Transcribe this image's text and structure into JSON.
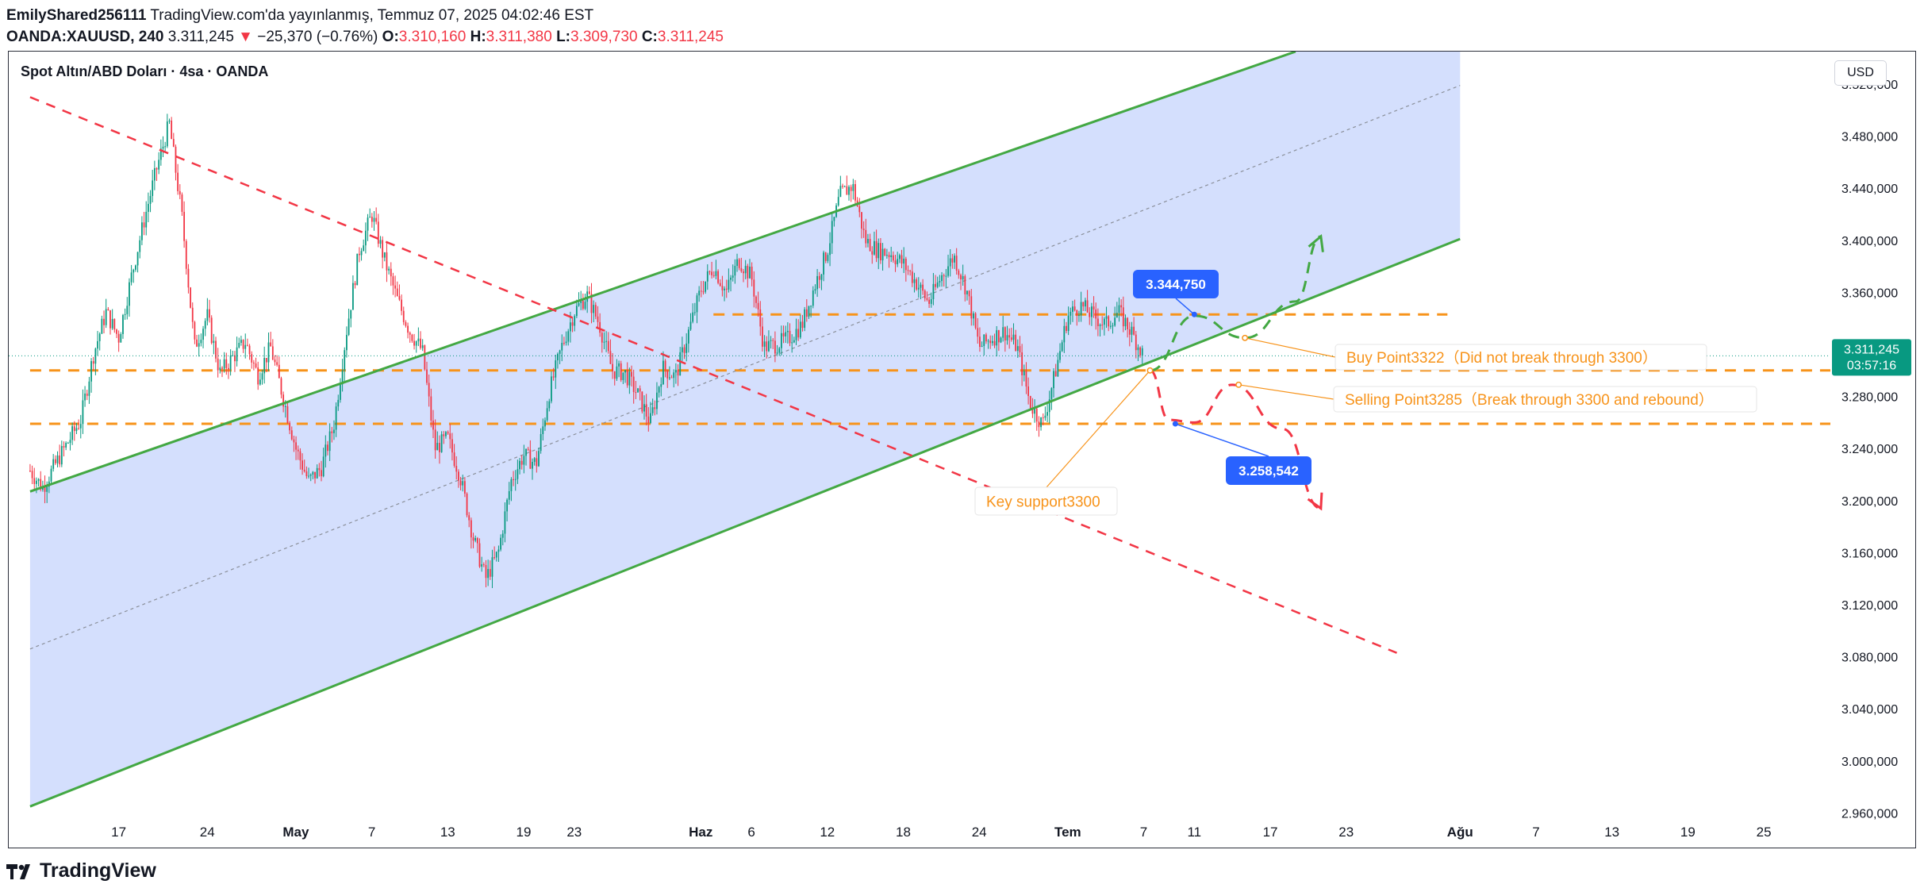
{
  "header": {
    "author": "EmilyShared256111",
    "published": "TradingView.com'da yayınlanmış, Temmuz 07, 2025 04:02:46 EST",
    "symbol": "OANDA:XAUUSD, 240",
    "last": "3.311,245",
    "change_arrow": "▼",
    "change": "−25,370 (−0.76%)",
    "o_label": "O:",
    "o": "3.310,160",
    "h_label": "H:",
    "h": "3.311,380",
    "l_label": "L:",
    "l": "3.309,730",
    "c_label": "C:",
    "c": "3.311,245"
  },
  "chart_title": "Spot Altın/ABD Doları · 4sa · OANDA",
  "currency": "USD",
  "price_badge": {
    "price": "3.311,245",
    "timer": "03:57:16"
  },
  "footer": {
    "brand": "TradingView"
  },
  "colors": {
    "up": "#089981",
    "down": "#f23645",
    "channel_fill": "#cfdcfd",
    "channel_line": "#43a843",
    "orange": "#f7931a",
    "blue": "#2962ff"
  },
  "chart_data": {
    "type": "candlestick",
    "ylim": [
      2930,
      3545
    ],
    "y_ticks": [
      2960,
      3000,
      3040,
      3080,
      3120,
      3160,
      3200,
      3240,
      3280,
      3320,
      3360,
      3400,
      3440,
      3480,
      3520
    ],
    "y_tick_labels": [
      "2.960,000",
      "3.000,000",
      "3.040,000",
      "3.080,000",
      "3.120,000",
      "3.160,000",
      "3.200,000",
      "3.240,000",
      "3.280,000",
      "3.320,000",
      "3.360,000",
      "3.400,000",
      "3.440,000",
      "3.480,000",
      "3.520,000"
    ],
    "x_ticks": [
      {
        "date": "2025-04-17",
        "label": "17"
      },
      {
        "date": "2025-04-24",
        "label": "24"
      },
      {
        "date": "2025-05-01",
        "label": "May"
      },
      {
        "date": "2025-05-07",
        "label": "7"
      },
      {
        "date": "2025-05-13",
        "label": "13"
      },
      {
        "date": "2025-05-19",
        "label": "19"
      },
      {
        "date": "2025-05-23",
        "label": "23"
      },
      {
        "date": "2025-06-02",
        "label": "Haz"
      },
      {
        "date": "2025-06-06",
        "label": "6"
      },
      {
        "date": "2025-06-12",
        "label": "12"
      },
      {
        "date": "2025-06-18",
        "label": "18"
      },
      {
        "date": "2025-06-24",
        "label": "24"
      },
      {
        "date": "2025-07-01",
        "label": "Tem"
      },
      {
        "date": "2025-07-07",
        "label": "7"
      },
      {
        "date": "2025-07-11",
        "label": "11"
      },
      {
        "date": "2025-07-17",
        "label": "17"
      },
      {
        "date": "2025-07-23",
        "label": "23"
      },
      {
        "date": "2025-08-01",
        "label": "Ağu"
      },
      {
        "date": "2025-08-07",
        "label": "7"
      },
      {
        "date": "2025-08-13",
        "label": "13"
      },
      {
        "date": "2025-08-19",
        "label": "19"
      },
      {
        "date": "2025-08-25",
        "label": "25"
      }
    ],
    "price_path": [
      [
        "2025-04-10 00:00",
        3223
      ],
      [
        "2025-04-11 00:00",
        3210
      ],
      [
        "2025-04-12 00:00",
        3228
      ],
      [
        "2025-04-14 00:00",
        3262
      ],
      [
        "2025-04-15 00:00",
        3312
      ],
      [
        "2025-04-16 00:00",
        3345
      ],
      [
        "2025-04-17 00:00",
        3325
      ],
      [
        "2025-04-18 00:00",
        3372
      ],
      [
        "2025-04-19 00:00",
        3415
      ],
      [
        "2025-04-20 00:00",
        3455
      ],
      [
        "2025-04-21 00:00",
        3490
      ],
      [
        "2025-04-22 00:00",
        3418
      ],
      [
        "2025-04-23 00:00",
        3318
      ],
      [
        "2025-04-24 00:00",
        3342
      ],
      [
        "2025-04-25 00:00",
        3298
      ],
      [
        "2025-04-27 00:00",
        3322
      ],
      [
        "2025-04-28 00:00",
        3296
      ],
      [
        "2025-04-29 00:00",
        3318
      ],
      [
        "2025-05-01 00:00",
        3240
      ],
      [
        "2025-05-02 00:00",
        3215
      ],
      [
        "2025-05-03 00:00",
        3225
      ],
      [
        "2025-05-04 00:00",
        3258
      ],
      [
        "2025-05-05 00:00",
        3330
      ],
      [
        "2025-05-06 00:00",
        3392
      ],
      [
        "2025-05-07 00:00",
        3420
      ],
      [
        "2025-05-08 00:00",
        3385
      ],
      [
        "2025-05-09 00:00",
        3355
      ],
      [
        "2025-05-10 00:00",
        3330
      ],
      [
        "2025-05-11 00:00",
        3315
      ],
      [
        "2025-05-12 00:00",
        3240
      ],
      [
        "2025-05-13 00:00",
        3248
      ],
      [
        "2025-05-14 00:00",
        3218
      ],
      [
        "2025-05-15 00:00",
        3172
      ],
      [
        "2025-05-16 00:00",
        3140
      ],
      [
        "2025-05-17 00:00",
        3160
      ],
      [
        "2025-05-18 00:00",
        3215
      ],
      [
        "2025-05-19 00:00",
        3235
      ],
      [
        "2025-05-20 00:00",
        3228
      ],
      [
        "2025-05-21 00:00",
        3282
      ],
      [
        "2025-05-22 00:00",
        3318
      ],
      [
        "2025-05-23 00:00",
        3345
      ],
      [
        "2025-05-24 00:00",
        3358
      ],
      [
        "2025-05-25 00:00",
        3335
      ],
      [
        "2025-05-26 00:00",
        3300
      ],
      [
        "2025-05-27 00:00",
        3298
      ],
      [
        "2025-05-28 00:00",
        3282
      ],
      [
        "2025-05-29 00:00",
        3260
      ],
      [
        "2025-05-30 00:00",
        3302
      ],
      [
        "2025-05-31 00:00",
        3295
      ],
      [
        "2025-06-02 00:00",
        3362
      ],
      [
        "2025-06-03 00:00",
        3380
      ],
      [
        "2025-06-04 00:00",
        3360
      ],
      [
        "2025-06-05 00:00",
        3385
      ],
      [
        "2025-06-06 00:00",
        3372
      ],
      [
        "2025-06-07 00:00",
        3318
      ],
      [
        "2025-06-08 00:00",
        3320
      ],
      [
        "2025-06-09 00:00",
        3325
      ],
      [
        "2025-06-10 00:00",
        3335
      ],
      [
        "2025-06-11 00:00",
        3365
      ],
      [
        "2025-06-12 00:00",
        3392
      ],
      [
        "2025-06-13 00:00",
        3435
      ],
      [
        "2025-06-14 00:00",
        3442
      ],
      [
        "2025-06-15 00:00",
        3400
      ],
      [
        "2025-06-16 00:00",
        3392
      ],
      [
        "2025-06-17 00:00",
        3390
      ],
      [
        "2025-06-18 00:00",
        3382
      ],
      [
        "2025-06-19 00:00",
        3368
      ],
      [
        "2025-06-20 00:00",
        3352
      ],
      [
        "2025-06-21 00:00",
        3372
      ],
      [
        "2025-06-22 00:00",
        3388
      ],
      [
        "2025-06-23 00:00",
        3362
      ],
      [
        "2025-06-24 00:00",
        3318
      ],
      [
        "2025-06-25 00:00",
        3325
      ],
      [
        "2025-06-26 00:00",
        3330
      ],
      [
        "2025-06-27 00:00",
        3318
      ],
      [
        "2025-06-28 00:00",
        3275
      ],
      [
        "2025-06-29 00:00",
        3258
      ],
      [
        "2025-06-30 00:00",
        3298
      ],
      [
        "2025-07-01 00:00",
        3342
      ],
      [
        "2025-07-02 00:00",
        3350
      ],
      [
        "2025-07-03 00:00",
        3342
      ],
      [
        "2025-07-04 00:00",
        3335
      ],
      [
        "2025-07-05 00:00",
        3345
      ],
      [
        "2025-07-06 00:00",
        3330
      ],
      [
        "2025-07-07 00:00",
        3311
      ]
    ],
    "channel_lower": [
      [
        "2025-04-10 00:00",
        2965
      ],
      [
        "2025-08-01 00:00",
        3401
      ]
    ],
    "channel_upper": [
      [
        "2025-04-10 00:00",
        3207
      ],
      [
        "2025-07-19 00:00",
        3545
      ]
    ],
    "channel_mid": [
      [
        "2025-04-10 00:00",
        3086
      ],
      [
        "2025-08-01 00:00",
        3519
      ]
    ],
    "channel_fill_right": "2025-08-01 00:00",
    "resistance_trend": [
      [
        "2025-04-10 00:00",
        3510
      ],
      [
        "2025-07-27 00:00",
        3083
      ]
    ],
    "levels": [
      {
        "price": 3343,
        "from": "2025-06-03 00:00",
        "to": "2025-07-31 00:00"
      },
      {
        "price": 3300,
        "from": "2025-04-10 00:00",
        "to": "2025-09-04 00:00"
      },
      {
        "price": 3259,
        "from": "2025-04-10 00:00",
        "to": "2025-09-03 00:00"
      }
    ],
    "bull_path": [
      [
        "2025-07-07 12:00",
        3300
      ],
      [
        "2025-07-11 00:00",
        3342
      ],
      [
        "2025-07-15 00:00",
        3325
      ],
      [
        "2025-07-19 00:00",
        3353
      ],
      [
        "2025-07-21 00:00",
        3403
      ]
    ],
    "bear_path": [
      [
        "2025-07-07 12:00",
        3300
      ],
      [
        "2025-07-09 00:00",
        3262
      ],
      [
        "2025-07-11 00:00",
        3260
      ],
      [
        "2025-07-14 00:00",
        3289
      ],
      [
        "2025-07-18 00:00",
        3255
      ],
      [
        "2025-07-21 00:00",
        3194
      ]
    ],
    "price_labels": [
      {
        "text": "3.344,750",
        "anchor": [
          "2025-07-11 00:00",
          3343
        ]
      },
      {
        "text": "3.258,542",
        "anchor": [
          "2025-07-09 12:00",
          3259
        ]
      }
    ],
    "annotations": [
      {
        "text": "Buy Point3322（Did not break through 3300）",
        "anchor": [
          "2025-07-15 00:00",
          3325
        ]
      },
      {
        "text": "Selling Point3285（Break through 3300 and rebound）",
        "anchor": [
          "2025-07-14 12:00",
          3289
        ]
      },
      {
        "text": "Key support3300",
        "anchor": [
          "2025-07-07 12:00",
          3300
        ]
      }
    ],
    "current_price": 3311.245
  }
}
